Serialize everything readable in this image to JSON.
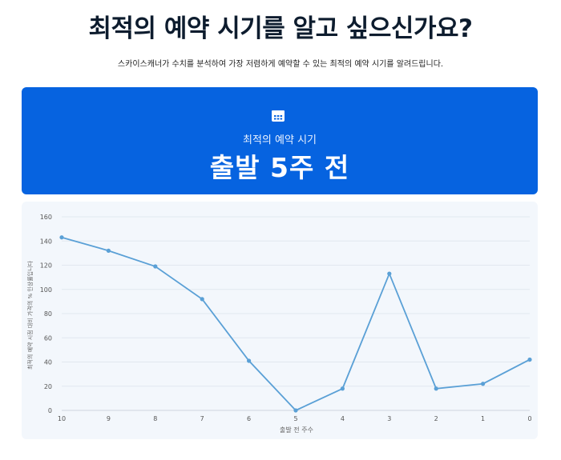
{
  "header": {
    "title": "최적의 예약 시기를 알고 싶으신가요?",
    "subtitle": "스카이스캐너가 수치를 분석하여 가장 저렴하게 예약할 수 있는 최적의 예약 시기를 알려드립니다."
  },
  "hero": {
    "icon": "calendar-icon",
    "label": "최적의 예약 시기",
    "value": "출발 5주 전",
    "color": "#0663e0"
  },
  "chart_data": {
    "type": "line",
    "x": [
      "10",
      "9",
      "8",
      "7",
      "6",
      "5",
      "4",
      "3",
      "2",
      "1",
      "0"
    ],
    "values": [
      143,
      132,
      119,
      92,
      41,
      0,
      18,
      113,
      18,
      22,
      42
    ],
    "xlabel": "출발 전 주수",
    "ylabel": "최적의 예약 시점 대비 가격의 % 인상률입니다",
    "ylim": [
      0,
      160
    ],
    "yticks": [
      0,
      20,
      40,
      60,
      80,
      100,
      120,
      140,
      160
    ],
    "grid": true,
    "line_color": "#5aa0d6"
  }
}
